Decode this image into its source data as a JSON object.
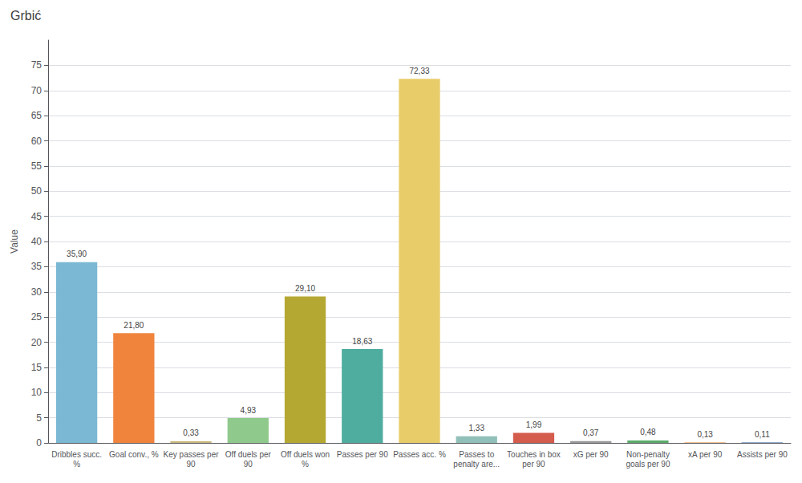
{
  "chart_data": {
    "type": "bar",
    "title": "Grbić",
    "ylabel": "Value",
    "categories": [
      "Dribbles succ.\n%",
      "Goal conv., %",
      "Key passes per\n90",
      "Off duels per\n90",
      "Off duels won\n%",
      "Passes per 90",
      "Passes acc. %",
      "Passes to\npenalty are...",
      "Touches in box\nper 90",
      "xG per 90",
      "Non-penalty\ngoals per 90",
      "xA per 90",
      "Assists per 90"
    ],
    "values": [
      35.9,
      21.8,
      0.33,
      4.93,
      29.1,
      18.63,
      72.33,
      1.33,
      1.99,
      0.37,
      0.48,
      0.13,
      0.11
    ],
    "value_labels": [
      "35,90",
      "21,80",
      "0,33",
      "4,93",
      "29,10",
      "18,63",
      "72,33",
      "1,33",
      "1,99",
      "0,37",
      "0,48",
      "0,13",
      "0,11"
    ],
    "colors": [
      "#7ab8d4",
      "#f0843c",
      "#c8b87c",
      "#8fc98c",
      "#b5a832",
      "#4fada0",
      "#e8cc6a",
      "#90c0b8",
      "#d45c4c",
      "#9a9a9a",
      "#5aab6a",
      "#f0b070",
      "#7090c8"
    ],
    "ylim": [
      0,
      80
    ],
    "yticks": [
      0,
      5,
      10,
      15,
      20,
      25,
      30,
      35,
      40,
      45,
      50,
      55,
      60,
      65,
      70,
      75
    ],
    "grid": true,
    "data_labels": true
  }
}
